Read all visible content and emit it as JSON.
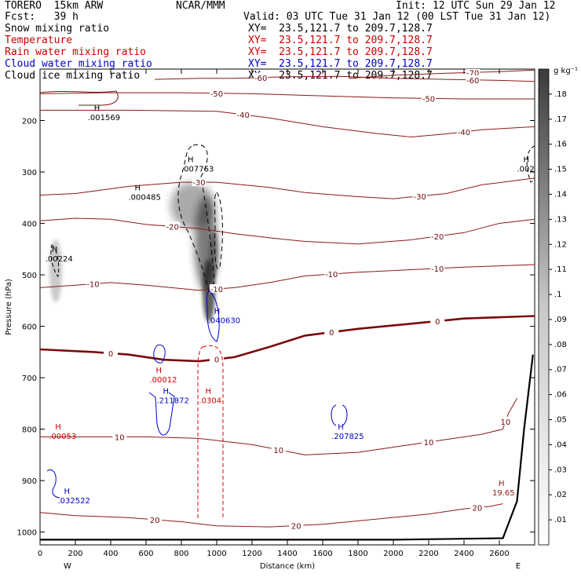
{
  "header": {
    "model": "TORERO  15km ARW",
    "source": "NCAR/MMM",
    "init": "Init: 12 UTC Sun 29 Jan 12",
    "fcst": "Fcst:   39 h",
    "valid": "Valid: 03 UTC Tue 31 Jan 12 (00 LST Tue 31 Jan 12)"
  },
  "fields": [
    {
      "name": "Snow mixing ratio",
      "xy": "XY=  23.5,121.7 to 209.7,128.7",
      "color": "#000000"
    },
    {
      "name": "Temperature",
      "xy": "XY=  23.5,121.7 to 209.7,128.7",
      "color": "#cc0000"
    },
    {
      "name": "Rain water mixing ratio",
      "xy": "XY=  23.5,121.7 to 209.7,128.7",
      "color": "#cc0000"
    },
    {
      "name": "Cloud water mixing ratio",
      "xy": "XY=  23.5,121.7 to 209.7,128.7",
      "color": "#0000cc"
    },
    {
      "name": "Cloud ice mixing ratio",
      "xy": "XY=  23.5,121.7 to 209.7,128.7",
      "color": "#000000"
    }
  ],
  "colorbar": {
    "unit": "g kg⁻¹",
    "levels": [
      ".01",
      ".02",
      ".03",
      ".04",
      ".05",
      ".06",
      ".07",
      ".08",
      ".09",
      ".1",
      ".11",
      ".12",
      ".13",
      ".14",
      ".15",
      ".16",
      ".17",
      ".18"
    ]
  },
  "chart_data": {
    "type": "contour",
    "xlabel": "Distance (km)",
    "ylabel": "Pressure (hPa)",
    "xlim": [
      0,
      2800
    ],
    "ylim": [
      1025,
      100
    ],
    "xticks": [
      "0",
      "200",
      "400",
      "600",
      "800",
      "1000",
      "1200",
      "1400",
      "1600",
      "1800",
      "2000",
      "2200",
      "2400",
      "2600"
    ],
    "yticks": [
      "200",
      "300",
      "400",
      "500",
      "600",
      "700",
      "800",
      "900",
      "1000"
    ],
    "x_end_labels": {
      "left": "W",
      "right": "E"
    },
    "temperature_isotherms": [
      {
        "value": -70,
        "labels": [
          "-70"
        ],
        "points": [
          [
            1750,
            118
          ],
          [
            2000,
            112
          ],
          [
            2300,
            108
          ],
          [
            2600,
            105
          ],
          [
            2800,
            102
          ]
        ]
      },
      {
        "value": -60,
        "labels": [
          "-60",
          "-60"
        ],
        "points": [
          [
            650,
            120
          ],
          [
            900,
            118
          ],
          [
            1100,
            118
          ],
          [
            1400,
            115
          ],
          [
            1700,
            114
          ],
          [
            2000,
            118
          ],
          [
            2300,
            120
          ],
          [
            2600,
            122
          ],
          [
            2800,
            124
          ]
        ]
      },
      {
        "value": -50,
        "labels": [
          "-50",
          "-50"
        ],
        "points": [
          [
            0,
            148
          ],
          [
            400,
            146
          ],
          [
            800,
            146
          ],
          [
            1200,
            148
          ],
          [
            1600,
            152
          ],
          [
            2000,
            156
          ],
          [
            2400,
            158
          ],
          [
            2800,
            158
          ]
        ]
      },
      {
        "value": -40,
        "labels": [
          "-40",
          "-40"
        ],
        "points": [
          [
            0,
            180
          ],
          [
            500,
            180
          ],
          [
            1000,
            182
          ],
          [
            1300,
            195
          ],
          [
            1600,
            212
          ],
          [
            1900,
            225
          ],
          [
            2100,
            232
          ],
          [
            2300,
            226
          ],
          [
            2500,
            218
          ],
          [
            2800,
            212
          ]
        ]
      },
      {
        "value": -30,
        "labels": [
          "-30",
          "-30"
        ],
        "points": [
          [
            0,
            345
          ],
          [
            200,
            342
          ],
          [
            500,
            328
          ],
          [
            800,
            320
          ],
          [
            1000,
            320
          ],
          [
            1300,
            330
          ],
          [
            1500,
            340
          ],
          [
            1800,
            348
          ],
          [
            2000,
            352
          ],
          [
            2300,
            342
          ],
          [
            2500,
            325
          ],
          [
            2800,
            312
          ]
        ]
      },
      {
        "value": -20,
        "labels": [
          "-20",
          "-20"
        ],
        "points": [
          [
            0,
            395
          ],
          [
            200,
            390
          ],
          [
            400,
            392
          ],
          [
            600,
            402
          ],
          [
            900,
            410
          ],
          [
            1100,
            420
          ],
          [
            1300,
            428
          ],
          [
            1500,
            435
          ],
          [
            1800,
            440
          ],
          [
            2100,
            432
          ],
          [
            2400,
            418
          ],
          [
            2600,
            400
          ],
          [
            2800,
            392
          ]
        ]
      },
      {
        "value": -10,
        "labels": [
          "-10",
          "-10",
          "-10",
          "-10"
        ],
        "points": [
          [
            0,
            525
          ],
          [
            200,
            520
          ],
          [
            400,
            515
          ],
          [
            600,
            520
          ],
          [
            900,
            530
          ],
          [
            1100,
            525
          ],
          [
            1300,
            515
          ],
          [
            1500,
            502
          ],
          [
            1800,
            495
          ],
          [
            2100,
            490
          ],
          [
            2400,
            485
          ],
          [
            2800,
            480
          ]
        ]
      },
      {
        "value": 0,
        "labels": [
          "0",
          "0",
          "0",
          "0"
        ],
        "bold": true,
        "points": [
          [
            0,
            645
          ],
          [
            300,
            650
          ],
          [
            500,
            655
          ],
          [
            700,
            665
          ],
          [
            900,
            668
          ],
          [
            1100,
            660
          ],
          [
            1300,
            640
          ],
          [
            1500,
            618
          ],
          [
            1800,
            605
          ],
          [
            2100,
            595
          ],
          [
            2400,
            585
          ],
          [
            2800,
            580
          ]
        ]
      },
      {
        "value": 10,
        "labels": [
          "10",
          "10",
          "10",
          "10"
        ],
        "points": [
          [
            0,
            815
          ],
          [
            300,
            815
          ],
          [
            600,
            815
          ],
          [
            900,
            818
          ],
          [
            1200,
            830
          ],
          [
            1500,
            850
          ],
          [
            1800,
            845
          ],
          [
            2100,
            830
          ],
          [
            2300,
            820
          ],
          [
            2500,
            810
          ],
          [
            2620,
            800
          ],
          [
            2650,
            770
          ],
          [
            2700,
            740
          ]
        ]
      },
      {
        "value": 20,
        "labels": [
          "20",
          "20",
          "20"
        ],
        "points": [
          [
            0,
            962
          ],
          [
            200,
            968
          ],
          [
            500,
            972
          ],
          [
            800,
            980
          ],
          [
            1000,
            988
          ],
          [
            1300,
            990
          ],
          [
            1600,
            985
          ],
          [
            1900,
            975
          ],
          [
            2200,
            965
          ],
          [
            2400,
            955
          ],
          [
            2550,
            950
          ],
          [
            2620,
            945
          ]
        ]
      }
    ],
    "maxima": [
      {
        "field": "Snow mixing ratio",
        "label": ".001569",
        "x": 270,
        "p": 190,
        "color": "#000000"
      },
      {
        "field": "Snow mixing ratio",
        "label": ".007763",
        "x": 800,
        "p": 290,
        "color": "#000000"
      },
      {
        "field": "Snow mixing ratio",
        "label": ".000485",
        "x": 500,
        "p": 345,
        "color": "#000000"
      },
      {
        "field": "Snow mixing ratio",
        "label": ".00224",
        "x": 30,
        "p": 465,
        "color": "#000000"
      },
      {
        "field": "Snow mixing ratio",
        "label": ".002",
        "x": 2700,
        "p": 290,
        "color": "#000000"
      },
      {
        "field": "Cloud water mixing ratio",
        "label": ".040630",
        "x": 950,
        "p": 585,
        "color": "#0000cc"
      },
      {
        "field": "Rain water mixing ratio",
        "label": ".00012",
        "x": 620,
        "p": 700,
        "color": "#cc0000"
      },
      {
        "field": "Cloud water mixing ratio",
        "label": ".211872",
        "x": 660,
        "p": 740,
        "color": "#0000cc"
      },
      {
        "field": "Rain water mixing ratio",
        "label": ".0304",
        "x": 900,
        "p": 740,
        "color": "#cc0000"
      },
      {
        "field": "Rain water mixing ratio",
        "label": ".00053",
        "x": 50,
        "p": 810,
        "color": "#cc0000"
      },
      {
        "field": "Cloud water mixing ratio",
        "label": ".207825",
        "x": 1650,
        "p": 810,
        "color": "#0000cc"
      },
      {
        "field": "Cloud water mixing ratio",
        "label": ".032522",
        "x": 100,
        "p": 935,
        "color": "#0000cc"
      },
      {
        "field": "Temperature",
        "label": "19.65",
        "x": 2560,
        "p": 920,
        "color": "#8b1a1a"
      }
    ],
    "ground_surface_hPa": [
      [
        0,
        1015
      ],
      [
        1000,
        1015
      ],
      [
        2000,
        1015
      ],
      [
        2620,
        1012
      ],
      [
        2700,
        940
      ],
      [
        2740,
        800
      ],
      [
        2790,
        655
      ]
    ]
  }
}
